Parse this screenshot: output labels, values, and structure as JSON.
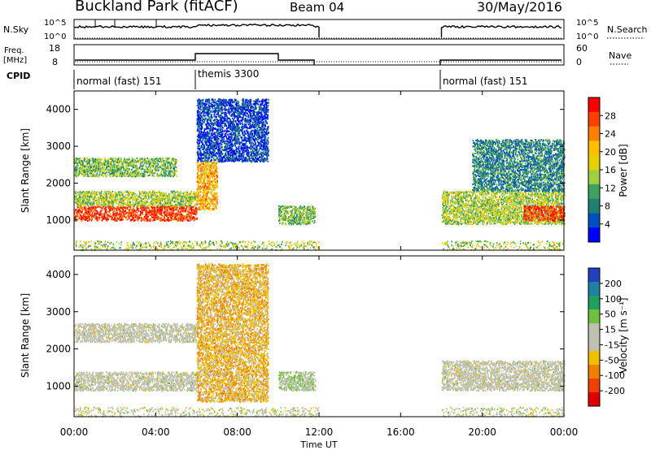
{
  "header": {
    "title": "Buckland Park (fitACF)",
    "beam": "Beam 04",
    "date": "30/May/2016"
  },
  "status_panels": {
    "nsky_label": "N.Sky",
    "nsearch_label": "N.Search",
    "freq_label_line1": "Freq.",
    "freq_label_line2": "[MHz]",
    "nave_label": "Nave",
    "cpid_label": "CPID",
    "nsky_ticks": [
      "10^5",
      "10^0"
    ],
    "nsearch_ticks": [
      "10^5",
      "10^0"
    ],
    "freq_ticks": [
      "18",
      "8"
    ],
    "nave_ticks": [
      "60",
      "0"
    ],
    "cpid_segments": [
      {
        "label": "normal (fast) 151",
        "start": 0.0,
        "end": 6.0
      },
      {
        "label": "themis 3300",
        "start": 6.0,
        "end": 12.0
      },
      {
        "label": "normal (fast) 151",
        "start": 18.0,
        "end": 24.0
      }
    ]
  },
  "axes": {
    "y_label": "Slant Range [km]",
    "y_ticks": [
      "4000",
      "3000",
      "2000",
      "1000"
    ],
    "x_label": "Time UT",
    "x_ticks": [
      "00:00",
      "04:00",
      "08:00",
      "12:00",
      "16:00",
      "20:00",
      "00:00"
    ]
  },
  "colorbars": {
    "power": {
      "label": "Power [dB]",
      "ticks": [
        "28",
        "24",
        "20",
        "16",
        "12",
        "8",
        "4"
      ],
      "colors": [
        "#ff0000",
        "#ff4000",
        "#ff8000",
        "#ffbf00",
        "#e6d000",
        "#a0d040",
        "#40a060",
        "#208070",
        "#0050c0",
        "#0000ff"
      ]
    },
    "velocity": {
      "label": "Velocity [m s⁻¹]",
      "ticks": [
        "200",
        "100",
        "50",
        "15",
        "-15",
        "-50",
        "-100",
        "-200"
      ],
      "colors": [
        "#2040c0",
        "#2080a0",
        "#20a060",
        "#70c040",
        "#c0c0b0",
        "#c0c0b0",
        "#f0c000",
        "#f08000",
        "#f04000",
        "#e00000"
      ]
    }
  },
  "chart_data": [
    {
      "type": "heatmap",
      "title": "Power [dB]",
      "xlabel": "Time UT",
      "ylabel": "Slant Range [km]",
      "xlim": [
        0,
        24
      ],
      "ylim": [
        180,
        4500
      ],
      "clim": [
        0,
        30
      ],
      "features": [
        {
          "t": [
            0.0,
            6.0
          ],
          "range_km": [
            1000,
            1400
          ],
          "power_db": 26
        },
        {
          "t": [
            0.0,
            6.0
          ],
          "range_km": [
            1400,
            1800
          ],
          "power_db": 14
        },
        {
          "t": [
            0.0,
            5.0
          ],
          "range_km": [
            2200,
            2700
          ],
          "power_db": 12
        },
        {
          "t": [
            6.0,
            9.5
          ],
          "range_km": [
            2600,
            4300
          ],
          "power_db": 4
        },
        {
          "t": [
            6.0,
            7.0
          ],
          "range_km": [
            1300,
            2600
          ],
          "power_db": 20
        },
        {
          "t": [
            10.0,
            11.8
          ],
          "range_km": [
            900,
            1400
          ],
          "power_db": 12
        },
        {
          "t": [
            18.0,
            24.0
          ],
          "range_km": [
            900,
            1800
          ],
          "power_db": 14
        },
        {
          "t": [
            22.0,
            24.0
          ],
          "range_km": [
            1000,
            1400
          ],
          "power_db": 26
        },
        {
          "t": [
            19.5,
            24.0
          ],
          "range_km": [
            1800,
            3200
          ],
          "power_db": 8
        }
      ],
      "data_gap": [
        12.0,
        18.0
      ]
    },
    {
      "type": "heatmap",
      "title": "Velocity [m s-1]",
      "xlabel": "Time UT",
      "ylabel": "Slant Range [km]",
      "xlim": [
        0,
        24
      ],
      "ylim": [
        180,
        4500
      ],
      "clim": [
        -200,
        200
      ],
      "features": [
        {
          "t": [
            0.0,
            6.0
          ],
          "range_km": [
            900,
            1400
          ],
          "velocity": 0
        },
        {
          "t": [
            0.0,
            6.0
          ],
          "range_km": [
            2200,
            2700
          ],
          "velocity": 0
        },
        {
          "t": [
            6.0,
            9.5
          ],
          "range_km": [
            600,
            4300
          ],
          "velocity": -60
        },
        {
          "t": [
            10.0,
            11.8
          ],
          "range_km": [
            900,
            1400
          ],
          "velocity": 30
        },
        {
          "t": [
            18.0,
            24.0
          ],
          "range_km": [
            900,
            1700
          ],
          "velocity": 0
        }
      ],
      "data_gap": [
        12.0,
        18.0
      ]
    }
  ]
}
